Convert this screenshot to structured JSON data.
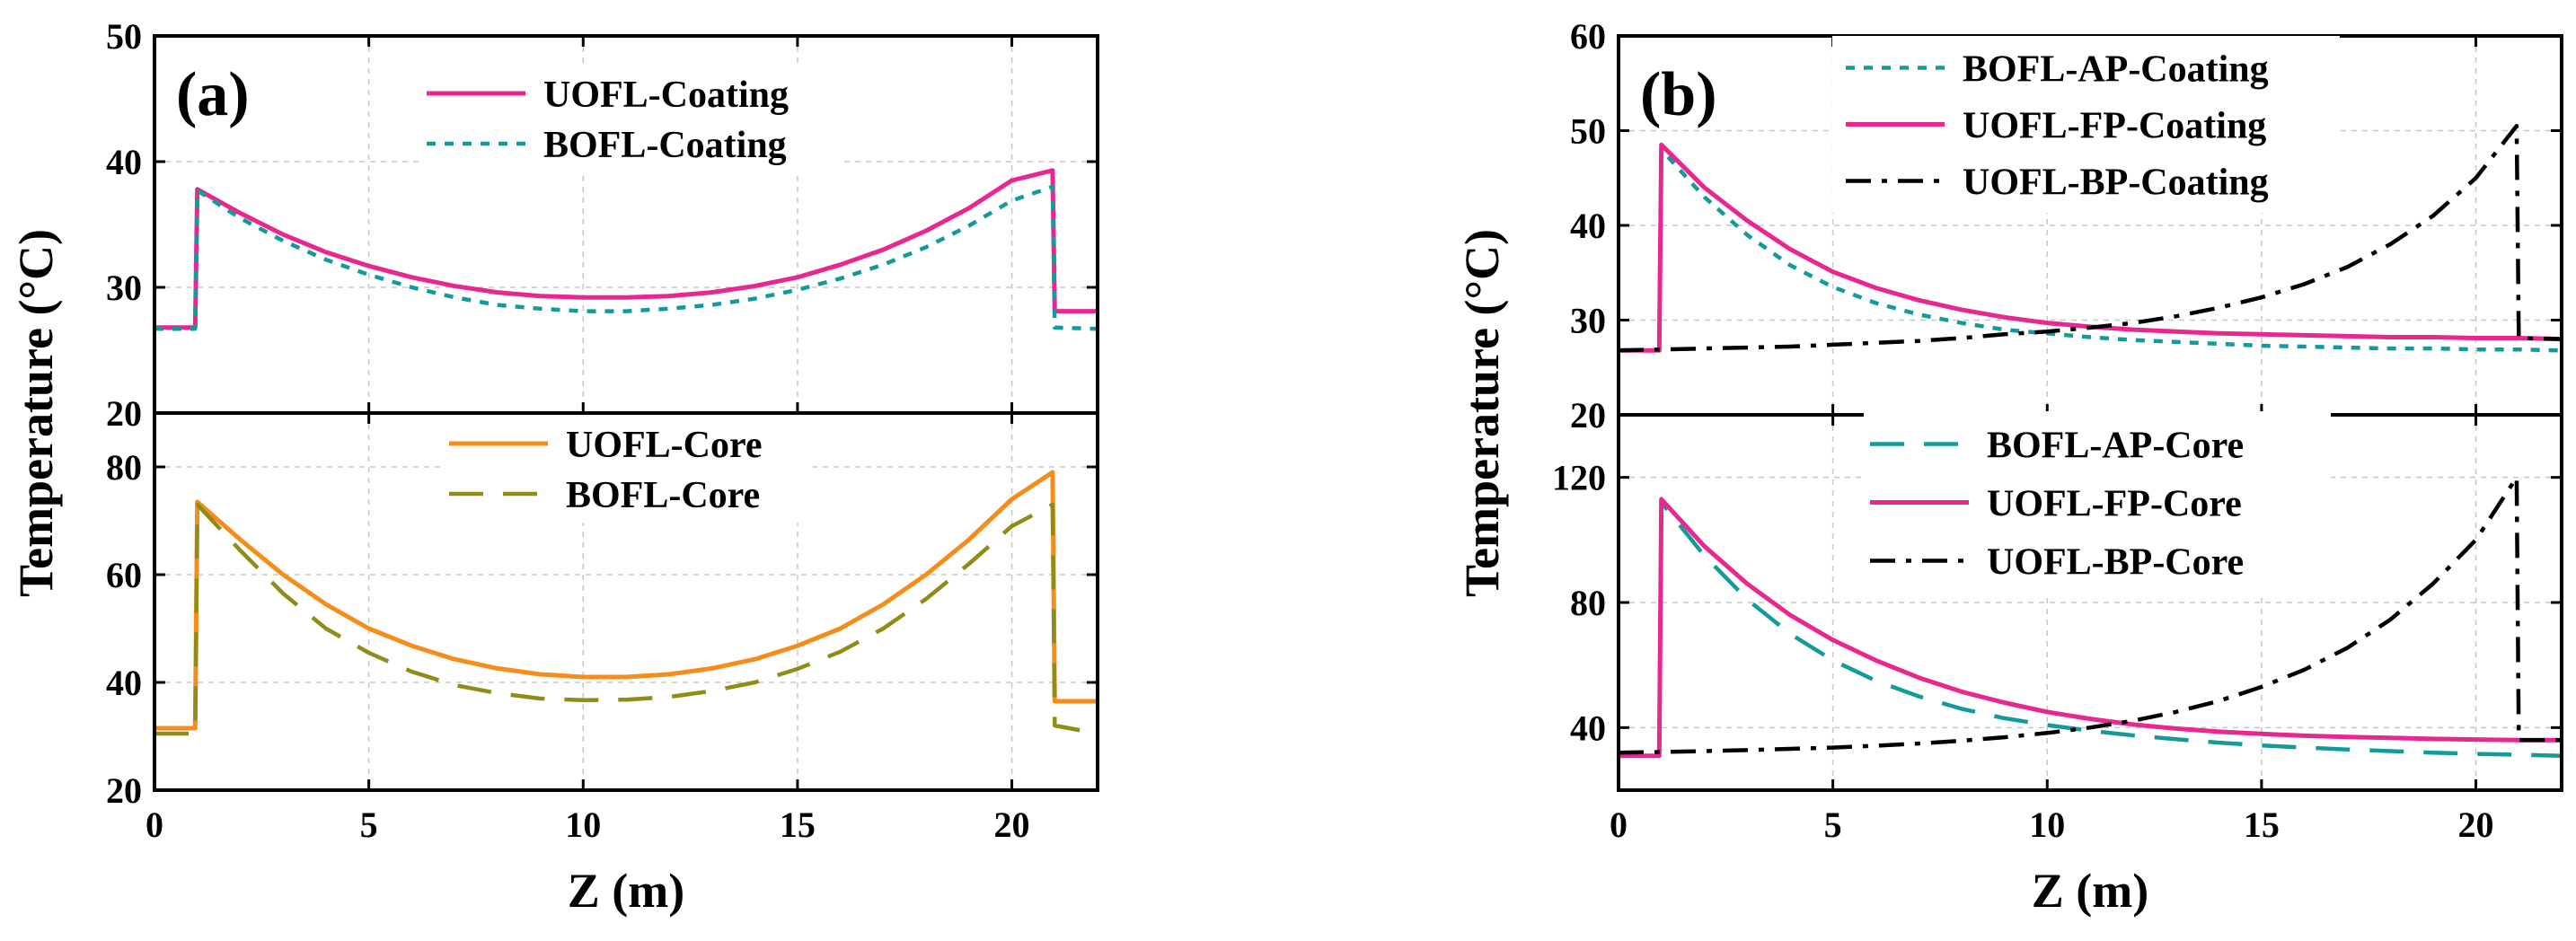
{
  "colors": {
    "magenta": "#e8288f",
    "teal": "#139a9a",
    "orange": "#f58d1b",
    "olive": "#8f8c17",
    "black": "#000000"
  },
  "chart_data": [
    {
      "type": "line",
      "panel_label": "(a)",
      "ylabel": "Temperature (°C)",
      "xlabel": "Z (m)",
      "xlim": [
        0,
        22
      ],
      "xticks": [
        0,
        5,
        10,
        15,
        20
      ],
      "grid": true,
      "subplots": [
        {
          "position": "top",
          "ylim": [
            20,
            50
          ],
          "yticks": [
            20,
            30,
            40,
            50
          ],
          "legend_location": "top-center",
          "series": [
            {
              "name": "UOFL-Coating",
              "style": "solid",
              "color": "#e8288f",
              "x": [
                0,
                0.95,
                1,
                2,
                3,
                4,
                5,
                6,
                7,
                8,
                9,
                10,
                11,
                12,
                13,
                14,
                15,
                16,
                17,
                18,
                19,
                20,
                20.95,
                21,
                22
              ],
              "y": [
                26.8,
                26.8,
                37.8,
                35.9,
                34.2,
                32.8,
                31.7,
                30.8,
                30.1,
                29.6,
                29.3,
                29.2,
                29.2,
                29.3,
                29.6,
                30.1,
                30.8,
                31.8,
                33.0,
                34.5,
                36.3,
                38.5,
                39.3,
                28.1,
                28.1
              ]
            },
            {
              "name": "BOFL-Coating",
              "style": "dotted",
              "color": "#139a9a",
              "x": [
                0,
                0.95,
                1,
                2,
                3,
                4,
                5,
                6,
                7,
                8,
                9,
                10,
                11,
                12,
                13,
                14,
                15,
                16,
                17,
                18,
                19,
                20,
                20.95,
                21,
                22
              ],
              "y": [
                26.7,
                26.7,
                37.7,
                35.5,
                33.7,
                32.2,
                31.0,
                30.0,
                29.2,
                28.6,
                28.3,
                28.1,
                28.1,
                28.3,
                28.6,
                29.1,
                29.8,
                30.7,
                31.8,
                33.2,
                34.9,
                36.9,
                38.0,
                26.8,
                26.7
              ]
            }
          ]
        },
        {
          "position": "bottom",
          "ylim": [
            20,
            90
          ],
          "yticks": [
            20,
            40,
            60,
            80
          ],
          "legend_location": "top-center",
          "series": [
            {
              "name": "UOFL-Core",
              "style": "solid",
              "color": "#f58d1b",
              "x": [
                0,
                0.95,
                1,
                2,
                3,
                4,
                5,
                6,
                7,
                8,
                9,
                10,
                11,
                12,
                13,
                14,
                15,
                16,
                17,
                18,
                19,
                20,
                20.95,
                21,
                22
              ],
              "y": [
                31.5,
                31.5,
                73.5,
                66.5,
                60.0,
                54.5,
                50.0,
                46.8,
                44.3,
                42.6,
                41.5,
                41.0,
                41.0,
                41.5,
                42.6,
                44.3,
                46.8,
                50.0,
                54.5,
                60.0,
                66.5,
                74.0,
                79.0,
                36.5,
                36.5
              ]
            },
            {
              "name": "BOFL-Core",
              "style": "dashed",
              "color": "#8f8c17",
              "x": [
                0,
                0.95,
                1,
                2,
                3,
                4,
                5,
                6,
                7,
                8,
                9,
                10,
                11,
                12,
                13,
                14,
                15,
                16,
                17,
                18,
                19,
                20,
                20.95,
                21,
                22
              ],
              "y": [
                30.5,
                30.5,
                73.0,
                64.5,
                56.5,
                50.0,
                45.5,
                42.0,
                39.5,
                38.0,
                37.0,
                36.7,
                36.8,
                37.3,
                38.4,
                40.0,
                42.5,
                45.7,
                50.0,
                55.5,
                62.0,
                69.0,
                73.0,
                32.0,
                30.5
              ]
            }
          ]
        }
      ]
    },
    {
      "type": "line",
      "panel_label": "(b)",
      "ylabel": "Temperature (°C)",
      "xlabel": "Z (m)",
      "xlim": [
        0,
        22
      ],
      "xticks": [
        0,
        5,
        10,
        15,
        20
      ],
      "grid": true,
      "subplots": [
        {
          "position": "top",
          "ylim": [
            20,
            60
          ],
          "yticks": [
            20,
            30,
            40,
            50,
            60
          ],
          "legend_location": "top-center",
          "series": [
            {
              "name": "BOFL-AP-Coating",
              "style": "dotted",
              "color": "#139a9a",
              "x": [
                0,
                0.95,
                1,
                2,
                3,
                4,
                5,
                6,
                7,
                8,
                9,
                10,
                11,
                12,
                13,
                14,
                15,
                16,
                17,
                18,
                19,
                20,
                21,
                22
              ],
              "y": [
                26.8,
                26.8,
                48.0,
                43.0,
                39.0,
                35.8,
                33.5,
                31.8,
                30.6,
                29.7,
                29.0,
                28.6,
                28.2,
                27.9,
                27.7,
                27.5,
                27.3,
                27.2,
                27.1,
                27.0,
                27.0,
                26.9,
                26.9,
                26.8
              ]
            },
            {
              "name": "UOFL-FP-Coating",
              "style": "solid",
              "color": "#e8288f",
              "x": [
                0,
                0.95,
                1,
                2,
                3,
                4,
                5,
                6,
                7,
                8,
                9,
                10,
                11,
                12,
                13,
                14,
                15,
                16,
                17,
                18,
                19,
                20,
                21,
                22
              ],
              "y": [
                26.8,
                26.8,
                48.5,
                44.0,
                40.5,
                37.5,
                35.1,
                33.4,
                32.1,
                31.1,
                30.3,
                29.7,
                29.3,
                29.0,
                28.8,
                28.6,
                28.5,
                28.4,
                28.3,
                28.2,
                28.2,
                28.1,
                28.1,
                28.0
              ]
            },
            {
              "name": "UOFL-BP-Coating",
              "style": "dashdot",
              "color": "#000000",
              "x": [
                0,
                1,
                2,
                3,
                4,
                5,
                6,
                7,
                8,
                9,
                10,
                11,
                12,
                13,
                14,
                15,
                16,
                17,
                18,
                19,
                20,
                20.95,
                21,
                22
              ],
              "y": [
                26.8,
                26.9,
                27.0,
                27.1,
                27.2,
                27.4,
                27.6,
                27.8,
                28.1,
                28.5,
                28.8,
                29.2,
                29.7,
                30.4,
                31.3,
                32.4,
                33.8,
                35.6,
                38.0,
                41.0,
                45.0,
                50.5,
                28.1,
                28.0
              ]
            }
          ]
        },
        {
          "position": "bottom",
          "ylim": [
            20,
            140
          ],
          "yticks": [
            40,
            80,
            120
          ],
          "legend_location": "top-center",
          "series": [
            {
              "name": "BOFL-AP-Core",
              "style": "dashed",
              "color": "#139a9a",
              "x": [
                0,
                0.95,
                1,
                2,
                3,
                4,
                5,
                6,
                7,
                8,
                9,
                10,
                11,
                12,
                13,
                14,
                15,
                16,
                17,
                18,
                19,
                20,
                21,
                22
              ],
              "y": [
                31.0,
                31.0,
                112.0,
                95.0,
                81.0,
                70.0,
                61.5,
                55.0,
                50.0,
                46.0,
                43.0,
                40.8,
                39.0,
                37.5,
                36.3,
                35.2,
                34.3,
                33.6,
                33.0,
                32.5,
                32.0,
                31.6,
                31.3,
                31.0
              ]
            },
            {
              "name": "UOFL-FP-Core",
              "style": "solid",
              "color": "#e8288f",
              "x": [
                0,
                0.95,
                1,
                2,
                3,
                4,
                5,
                6,
                7,
                8,
                9,
                10,
                11,
                12,
                13,
                14,
                15,
                16,
                17,
                18,
                19,
                20,
                21,
                22
              ],
              "y": [
                31.0,
                31.0,
                113.0,
                98.0,
                86.0,
                76.0,
                68.0,
                61.5,
                56.0,
                51.5,
                48.0,
                45.0,
                42.8,
                41.0,
                39.7,
                38.7,
                38.0,
                37.4,
                37.0,
                36.7,
                36.4,
                36.2,
                36.0,
                36.0
              ]
            },
            {
              "name": "UOFL-BP-Core",
              "style": "dashdot",
              "color": "#000000",
              "x": [
                0,
                1,
                2,
                3,
                4,
                5,
                6,
                7,
                8,
                9,
                10,
                11,
                12,
                13,
                14,
                15,
                16,
                17,
                18,
                19,
                20,
                20.95,
                21,
                22
              ],
              "y": [
                32.0,
                32.2,
                32.5,
                32.8,
                33.2,
                33.6,
                34.2,
                34.9,
                35.8,
                36.9,
                38.3,
                40.0,
                42.2,
                45.0,
                48.5,
                53.0,
                58.5,
                65.5,
                74.5,
                86.0,
                100.0,
                120.0,
                36.0,
                36.0
              ]
            }
          ]
        }
      ]
    }
  ]
}
